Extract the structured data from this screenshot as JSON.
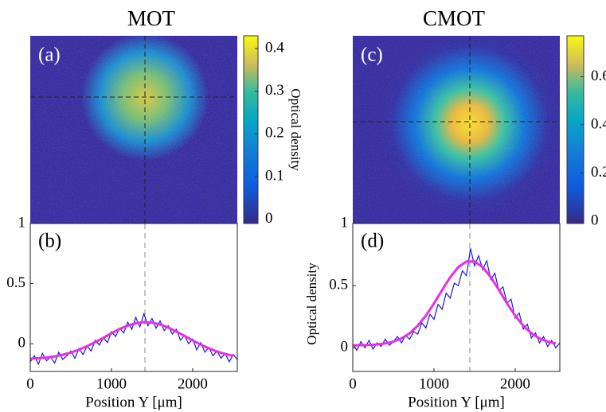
{
  "chart_data": [
    {
      "type": "image",
      "title": "MOT",
      "panel_label": "(a)",
      "colorbar": {
        "label": "Optical density",
        "lim": [
          -0.01,
          0.43
        ],
        "ticks": [
          0,
          0.1,
          0.2,
          0.3,
          0.4
        ]
      }
    },
    {
      "type": "line",
      "panel_label": "(b)",
      "xlabel": "Position Y [μm]",
      "xlim": [
        0,
        2550
      ],
      "xticks": [
        0,
        1000,
        2000
      ],
      "ylim": [
        -0.23,
        1
      ],
      "yticks": [
        0,
        0.5,
        1
      ],
      "series": [
        {
          "color": "#1a1ad6",
          "x": [
            0,
            50,
            100,
            150,
            200,
            250,
            300,
            350,
            400,
            450,
            500,
            550,
            600,
            650,
            700,
            750,
            800,
            850,
            900,
            950,
            1000,
            1050,
            1100,
            1150,
            1200,
            1250,
            1300,
            1350,
            1400,
            1450,
            1500,
            1550,
            1600,
            1650,
            1700,
            1750,
            1800,
            1850,
            1900,
            1950,
            2000,
            2050,
            2100,
            2150,
            2200,
            2250,
            2300,
            2350,
            2400,
            2450,
            2500,
            2550
          ],
          "values": [
            -0.15,
            -0.1,
            -0.17,
            -0.08,
            -0.14,
            -0.11,
            -0.16,
            -0.07,
            -0.13,
            -0.1,
            -0.06,
            -0.12,
            -0.04,
            -0.09,
            -0.02,
            -0.06,
            0.03,
            -0.01,
            0.05,
            0.01,
            0.1,
            0.06,
            0.13,
            0.09,
            0.18,
            0.12,
            0.22,
            0.14,
            0.25,
            0.15,
            0.21,
            0.13,
            0.19,
            0.11,
            0.15,
            0.08,
            0.12,
            0.03,
            0.07,
            0.0,
            0.04,
            -0.05,
            0.01,
            -0.07,
            -0.03,
            -0.1,
            -0.06,
            -0.12,
            -0.08,
            -0.15,
            -0.09,
            -0.13
          ]
        },
        {
          "color": "#e62ee6",
          "x": [
            0,
            100,
            200,
            300,
            400,
            500,
            600,
            700,
            800,
            900,
            1000,
            1100,
            1200,
            1300,
            1400,
            1500,
            1600,
            1700,
            1800,
            1900,
            2000,
            2100,
            2200,
            2300,
            2400,
            2500
          ],
          "values": [
            -0.124,
            -0.12,
            -0.114,
            -0.105,
            -0.091,
            -0.073,
            -0.049,
            -0.02,
            0.014,
            0.05,
            0.088,
            0.123,
            0.151,
            0.171,
            0.18,
            0.176,
            0.16,
            0.135,
            0.102,
            0.066,
            0.028,
            -0.007,
            -0.038,
            -0.064,
            -0.085,
            -0.1
          ]
        }
      ]
    },
    {
      "type": "image",
      "title": "CMOT",
      "panel_label": "(c)",
      "colorbar": {
        "lim": [
          -0.01,
          0.77
        ],
        "ticks": [
          0,
          0.2,
          0.4,
          0.6
        ]
      }
    },
    {
      "type": "line",
      "panel_label": "(d)",
      "xlabel": "Position Y [μm]",
      "ylabel": "Optical density",
      "xlim": [
        0,
        2550
      ],
      "xticks": [
        0,
        1000,
        2000
      ],
      "ylim": [
        -0.19,
        1
      ],
      "yticks": [
        0,
        0.5,
        1
      ],
      "series": [
        {
          "color": "#1a1ad6",
          "x": [
            0,
            50,
            100,
            150,
            200,
            250,
            300,
            350,
            400,
            450,
            500,
            550,
            600,
            650,
            700,
            750,
            800,
            850,
            900,
            950,
            1000,
            1050,
            1100,
            1150,
            1200,
            1250,
            1300,
            1350,
            1400,
            1450,
            1500,
            1550,
            1600,
            1650,
            1700,
            1750,
            1800,
            1850,
            1900,
            1950,
            2000,
            2050,
            2100,
            2150,
            2200,
            2250,
            2300,
            2350,
            2400,
            2450,
            2500,
            2550
          ],
          "values": [
            0.03,
            -0.02,
            0.05,
            0.0,
            0.06,
            -0.01,
            0.04,
            0.01,
            0.07,
            0.02,
            0.05,
            0.09,
            0.04,
            0.1,
            0.07,
            0.13,
            0.11,
            0.2,
            0.16,
            0.27,
            0.23,
            0.35,
            0.31,
            0.44,
            0.4,
            0.52,
            0.5,
            0.62,
            0.58,
            0.8,
            0.66,
            0.74,
            0.63,
            0.7,
            0.55,
            0.6,
            0.46,
            0.49,
            0.36,
            0.39,
            0.24,
            0.28,
            0.15,
            0.19,
            0.08,
            0.12,
            0.04,
            0.09,
            0.01,
            0.06,
            0.0,
            0.04
          ]
        },
        {
          "color": "#e62ee6",
          "x": [
            0,
            100,
            200,
            300,
            400,
            500,
            600,
            700,
            800,
            900,
            1000,
            1100,
            1200,
            1300,
            1400,
            1500,
            1600,
            1700,
            1800,
            1900,
            2000,
            2100,
            2200,
            2300,
            2400,
            2500
          ],
          "values": [
            0.02,
            0.021,
            0.023,
            0.027,
            0.035,
            0.05,
            0.076,
            0.117,
            0.178,
            0.259,
            0.357,
            0.465,
            0.568,
            0.649,
            0.694,
            0.694,
            0.649,
            0.568,
            0.465,
            0.357,
            0.259,
            0.178,
            0.117,
            0.076,
            0.05,
            0.035
          ]
        }
      ]
    }
  ]
}
